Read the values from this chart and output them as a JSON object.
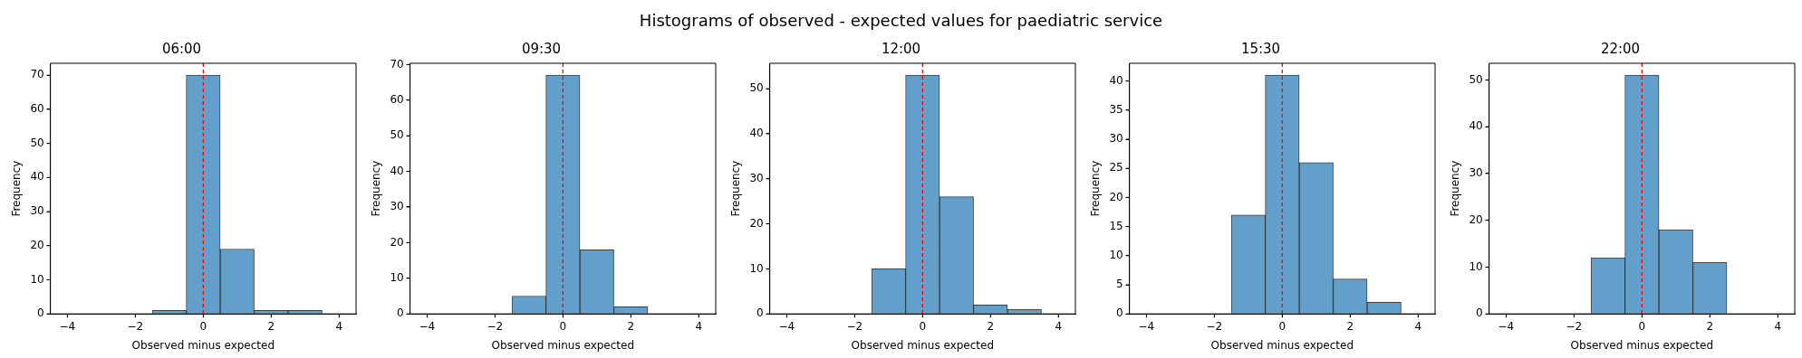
{
  "chart_data": [
    {
      "type": "histogram",
      "title": "06:00",
      "annotations": [
        "Histograms of observed - expected values for paediatric service"
      ],
      "xlabel": "Observed minus expected",
      "ylabel": "Frequency",
      "color": "#62a0cb",
      "bins": [
        -4.5,
        -3.5,
        -2.5,
        -1.5,
        -0.5,
        0.5,
        1.5,
        2.5,
        3.5,
        4.5
      ],
      "values": [
        0,
        0,
        0,
        1,
        70,
        19,
        1,
        1,
        0
      ],
      "xlim": [
        -4.5,
        4.5
      ],
      "xticks": [
        -4,
        -2,
        0,
        2,
        4
      ],
      "ylim": [
        0,
        73.5
      ],
      "yticks": [
        0,
        10,
        20,
        30,
        40,
        50,
        60,
        70
      ],
      "grid": false,
      "ref_lines": [
        {
          "axis": "x",
          "value": 0,
          "color": "#ff0000",
          "line_style": "dashed"
        }
      ]
    },
    {
      "type": "histogram",
      "title": "09:30",
      "xlabel": "Observed minus expected",
      "ylabel": "Frequency",
      "color": "#62a0cb",
      "bins": [
        -4.5,
        -3.5,
        -2.5,
        -1.5,
        -0.5,
        0.5,
        1.5,
        2.5,
        3.5,
        4.5
      ],
      "values": [
        0,
        0,
        0,
        5,
        67,
        18,
        2,
        0,
        0
      ],
      "xlim": [
        -4.5,
        4.5
      ],
      "xticks": [
        -4,
        -2,
        0,
        2,
        4
      ],
      "ylim": [
        0,
        70.35
      ],
      "yticks": [
        0,
        10,
        20,
        30,
        40,
        50,
        60,
        70
      ],
      "grid": false,
      "ref_lines": [
        {
          "axis": "x",
          "value": 0,
          "color": "#ff0000",
          "line_style": "dashed"
        }
      ]
    },
    {
      "type": "histogram",
      "title": "12:00",
      "xlabel": "Observed minus expected",
      "ylabel": "Frequency",
      "color": "#62a0cb",
      "bins": [
        -4.5,
        -3.5,
        -2.5,
        -1.5,
        -0.5,
        0.5,
        1.5,
        2.5,
        3.5,
        4.5
      ],
      "values": [
        0,
        0,
        0,
        10,
        53,
        26,
        2,
        1,
        0
      ],
      "xlim": [
        -4.5,
        4.5
      ],
      "xticks": [
        -4,
        -2,
        0,
        2,
        4
      ],
      "ylim": [
        0,
        55.65
      ],
      "yticks": [
        0,
        10,
        20,
        30,
        40,
        50
      ],
      "grid": false,
      "ref_lines": [
        {
          "axis": "x",
          "value": 0,
          "color": "#ff0000",
          "line_style": "dashed"
        }
      ]
    },
    {
      "type": "histogram",
      "title": "15:30",
      "xlabel": "Observed minus expected",
      "ylabel": "Frequency",
      "color": "#62a0cb",
      "bins": [
        -4.5,
        -3.5,
        -2.5,
        -1.5,
        -0.5,
        0.5,
        1.5,
        2.5,
        3.5,
        4.5
      ],
      "values": [
        0,
        0,
        0,
        17,
        41,
        26,
        6,
        2,
        0
      ],
      "xlim": [
        -4.5,
        4.5
      ],
      "xticks": [
        -4,
        -2,
        0,
        2,
        4
      ],
      "ylim": [
        0,
        43.05
      ],
      "yticks": [
        0,
        5,
        10,
        15,
        20,
        25,
        30,
        35,
        40
      ],
      "grid": false,
      "ref_lines": [
        {
          "axis": "x",
          "value": 0,
          "color": "#ff0000",
          "line_style": "dashed"
        }
      ]
    },
    {
      "type": "histogram",
      "title": "22:00",
      "xlabel": "Observed minus expected",
      "ylabel": "Frequency",
      "color": "#62a0cb",
      "bins": [
        -4.5,
        -3.5,
        -2.5,
        -1.5,
        -0.5,
        0.5,
        1.5,
        2.5,
        3.5,
        4.5
      ],
      "values": [
        0,
        0,
        0,
        12,
        51,
        18,
        11,
        0,
        0
      ],
      "xlim": [
        -4.5,
        4.5
      ],
      "xticks": [
        -4,
        -2,
        0,
        2,
        4
      ],
      "ylim": [
        0,
        53.55
      ],
      "yticks": [
        0,
        10,
        20,
        30,
        40,
        50
      ],
      "grid": false,
      "ref_lines": [
        {
          "axis": "x",
          "value": 0,
          "color": "#ff0000",
          "line_style": "dashed"
        }
      ]
    }
  ]
}
